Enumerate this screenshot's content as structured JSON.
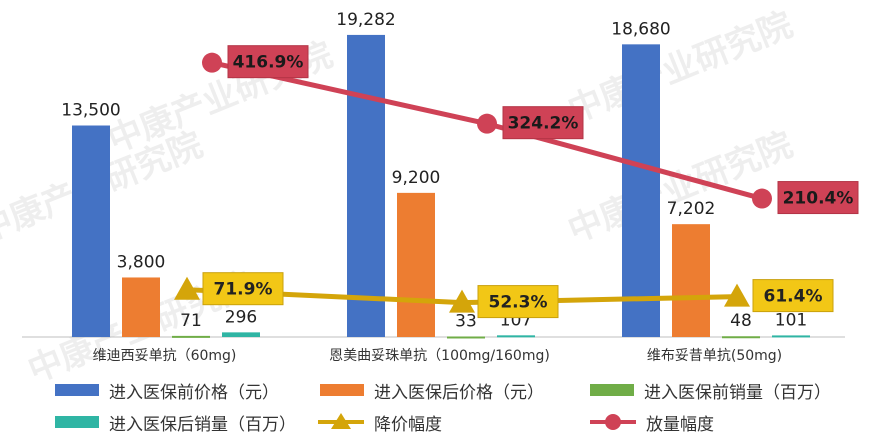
{
  "watermark_text": "中康产业研究院",
  "chart_data": {
    "type": "bar",
    "categories": [
      "维迪西妥单抗（60mg)",
      "恩美曲妥珠单抗（100mg/160mg)",
      "维布妥昔单抗(50mg)"
    ],
    "series": [
      {
        "name": "进入医保前价格（元）",
        "kind": "bar",
        "color": "#4472C4",
        "values": [
          13500,
          19282,
          18680
        ],
        "labels": [
          "13,500",
          "19,282",
          "18,680"
        ]
      },
      {
        "name": "进入医保后价格（元）",
        "kind": "bar",
        "color": "#ED7D31",
        "values": [
          3800,
          9200,
          7202
        ],
        "labels": [
          "3,800",
          "9,200",
          "7,202"
        ]
      },
      {
        "name": "进入医保前销量（百万）",
        "kind": "bar",
        "color": "#70AD47",
        "values": [
          71,
          33,
          48
        ],
        "labels": [
          "71",
          "33",
          "48"
        ]
      },
      {
        "name": "进入医保后销量（百万）",
        "kind": "bar",
        "color": "#2FB5A4",
        "values": [
          296,
          107,
          101
        ],
        "labels": [
          "296",
          "107",
          "101"
        ]
      },
      {
        "name": "降价幅度",
        "kind": "line",
        "color": "#D4A50A",
        "marker": "triangle",
        "values": [
          71.9,
          52.3,
          61.4
        ],
        "labels": [
          "71.9%",
          "52.3%",
          "61.4%"
        ]
      },
      {
        "name": "放量幅度",
        "kind": "line",
        "color": "#CF4256",
        "marker": "circle",
        "values": [
          416.9,
          324.2,
          210.4
        ],
        "labels": [
          "416.9%",
          "324.2%",
          "210.4%"
        ]
      }
    ],
    "primary_ylim": [
      0,
      21000
    ],
    "secondary_ylim": [
      0,
      500
    ],
    "grid": false,
    "legend_position": "bottom"
  }
}
